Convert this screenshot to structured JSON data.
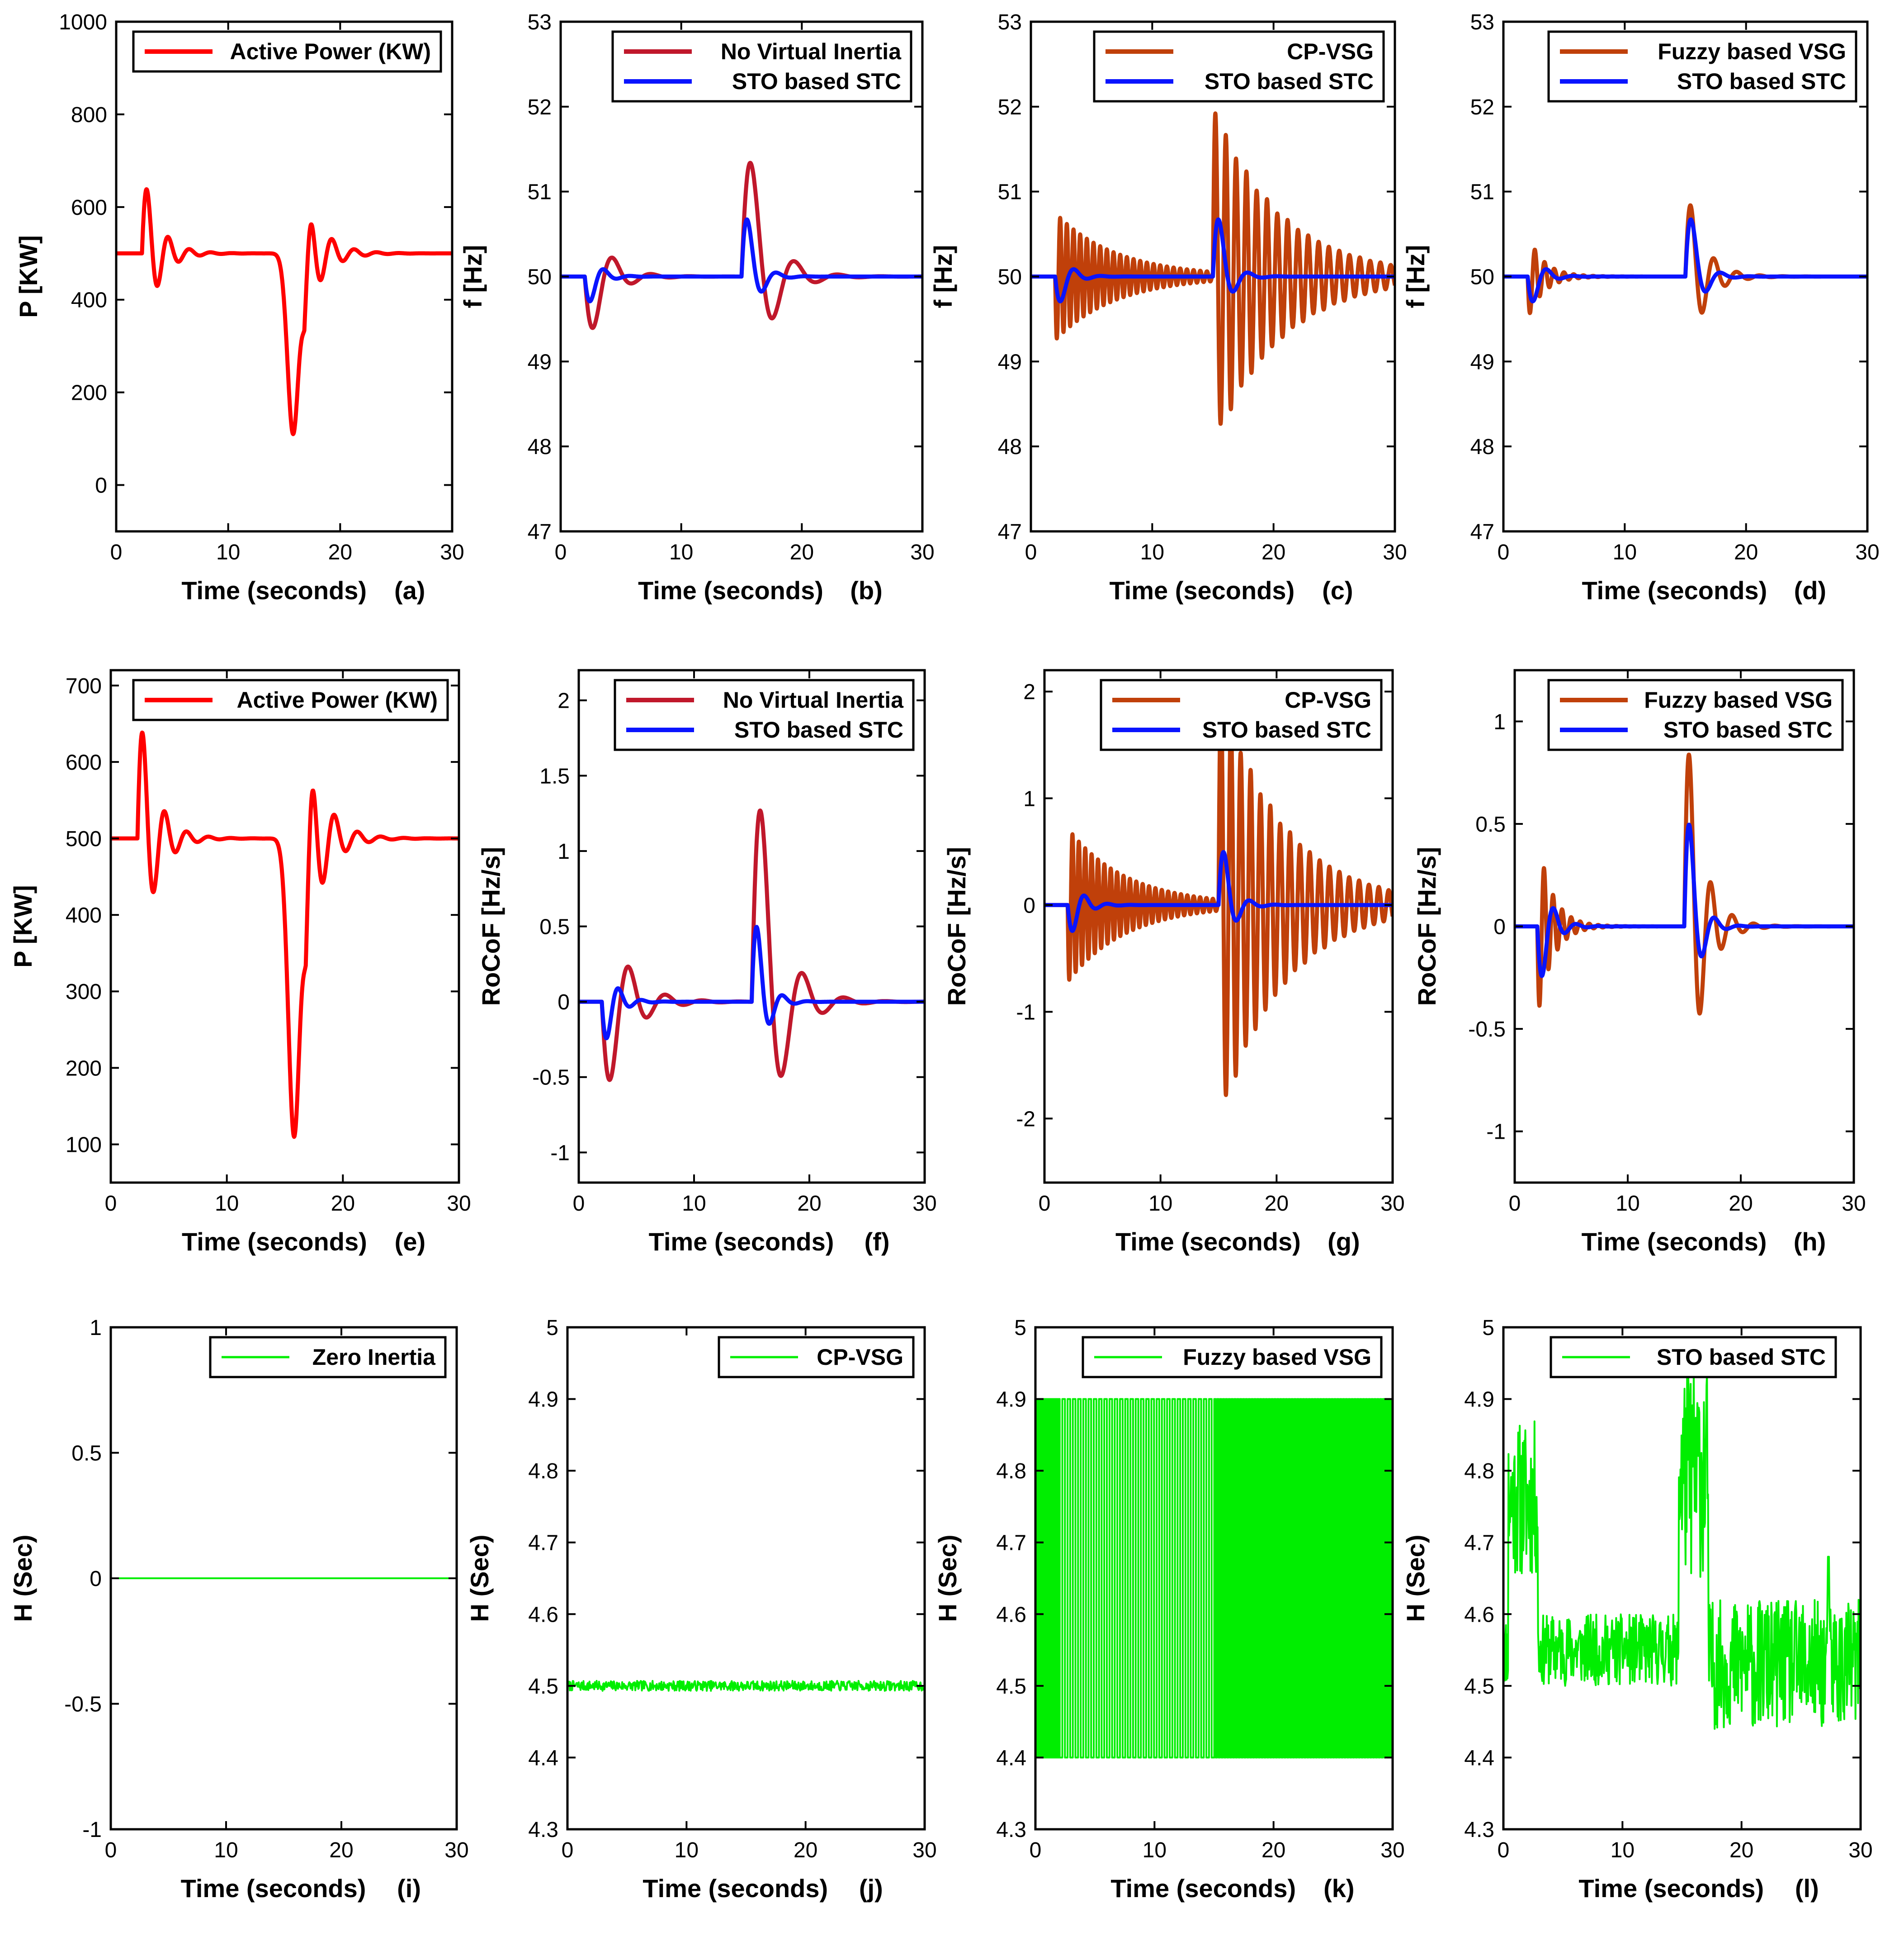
{
  "chart_data": [
    {
      "panel": "a",
      "panel_label": "(a)",
      "type": "line",
      "xlabel": "Time (seconds)",
      "ylabel": "P [KW]",
      "xlim": [
        0,
        30
      ],
      "ylim": [
        -100,
        1000
      ],
      "xticks": [
        0,
        10,
        20,
        30
      ],
      "yticks": [
        0,
        200,
        400,
        600,
        800,
        1000
      ],
      "legend_position": "top-right",
      "series": [
        {
          "name": "Active Power (KW)",
          "color": "#ff0000",
          "kind": "power"
        }
      ]
    },
    {
      "panel": "b",
      "panel_label": "(b)",
      "type": "line",
      "xlabel": "Time (seconds)",
      "ylabel": "f [Hz]",
      "xlim": [
        0,
        30
      ],
      "ylim": [
        47,
        53
      ],
      "xticks": [
        0,
        10,
        20,
        30
      ],
      "yticks": [
        47,
        48,
        49,
        50,
        51,
        52,
        53
      ],
      "legend_position": "top-right",
      "series": [
        {
          "name": "No Virtual Inertia",
          "color": "#c0182b",
          "kind": "freq_noinertia"
        },
        {
          "name": "STO based STC",
          "color": "#0a14ff",
          "kind": "freq_sto"
        }
      ]
    },
    {
      "panel": "c",
      "panel_label": "(c)",
      "type": "line",
      "xlabel": "Time (seconds)",
      "ylabel": "f [Hz]",
      "xlim": [
        0,
        30
      ],
      "ylim": [
        47,
        53
      ],
      "xticks": [
        0,
        10,
        20,
        30
      ],
      "yticks": [
        47,
        48,
        49,
        50,
        51,
        52,
        53
      ],
      "legend_position": "top-right",
      "series": [
        {
          "name": "CP-VSG",
          "color": "#c0400a",
          "kind": "freq_cpvsg"
        },
        {
          "name": "STO based STC",
          "color": "#0a14ff",
          "kind": "freq_sto"
        }
      ]
    },
    {
      "panel": "d",
      "panel_label": "(d)",
      "type": "line",
      "xlabel": "Time (seconds)",
      "ylabel": "f [Hz]",
      "xlim": [
        0,
        30
      ],
      "ylim": [
        47,
        53
      ],
      "xticks": [
        0,
        10,
        20,
        30
      ],
      "yticks": [
        47,
        48,
        49,
        50,
        51,
        52,
        53
      ],
      "legend_position": "top-right",
      "series": [
        {
          "name": "Fuzzy based VSG",
          "color": "#c0400a",
          "kind": "freq_fuzzy"
        },
        {
          "name": "STO based STC",
          "color": "#0a14ff",
          "kind": "freq_sto"
        }
      ]
    },
    {
      "panel": "e",
      "panel_label": "(e)",
      "type": "line",
      "xlabel": "Time (seconds)",
      "ylabel": "P [KW]",
      "xlim": [
        0,
        30
      ],
      "ylim": [
        50,
        720
      ],
      "xticks": [
        0,
        10,
        20,
        30
      ],
      "yticks": [
        100,
        200,
        300,
        400,
        500,
        600,
        700
      ],
      "legend_position": "top-right",
      "series": [
        {
          "name": "Active Power (KW)",
          "color": "#ff0000",
          "kind": "power"
        }
      ]
    },
    {
      "panel": "f",
      "panel_label": "(f)",
      "type": "line",
      "xlabel": "Time (seconds)",
      "ylabel": "RoCoF [Hz/s]",
      "xlim": [
        0,
        30
      ],
      "ylim": [
        -1.2,
        2.2
      ],
      "xticks": [
        0,
        10,
        20,
        30
      ],
      "yticks": [
        -1,
        -0.5,
        0,
        0.5,
        1,
        1.5,
        2
      ],
      "legend_position": "top-right",
      "series": [
        {
          "name": "No Virtual Inertia",
          "color": "#c0182b",
          "kind": "rocof_noinertia"
        },
        {
          "name": "STO based STC",
          "color": "#0a14ff",
          "kind": "rocof_sto"
        }
      ]
    },
    {
      "panel": "g",
      "panel_label": "(g)",
      "type": "line",
      "xlabel": "Time (seconds)",
      "ylabel": "RoCoF [Hz/s]",
      "xlim": [
        0,
        30
      ],
      "ylim": [
        -2.6,
        2.2
      ],
      "xticks": [
        0,
        10,
        20,
        30
      ],
      "yticks": [
        -2,
        -1,
        0,
        1,
        2
      ],
      "legend_position": "top-right",
      "series": [
        {
          "name": "CP-VSG",
          "color": "#c0400a",
          "kind": "rocof_cpvsg"
        },
        {
          "name": "STO based STC",
          "color": "#0a14ff",
          "kind": "rocof_sto"
        }
      ]
    },
    {
      "panel": "h",
      "panel_label": "(h)",
      "type": "line",
      "xlabel": "Time (seconds)",
      "ylabel": "RoCoF [Hz/s]",
      "xlim": [
        0,
        30
      ],
      "ylim": [
        -1.25,
        1.25
      ],
      "xticks": [
        0,
        10,
        20,
        30
      ],
      "yticks": [
        -1,
        -0.5,
        0,
        0.5,
        1
      ],
      "legend_position": "top-right",
      "series": [
        {
          "name": "Fuzzy based VSG",
          "color": "#c0400a",
          "kind": "rocof_fuzzy"
        },
        {
          "name": "STO based STC",
          "color": "#0a14ff",
          "kind": "rocof_sto"
        }
      ]
    },
    {
      "panel": "i",
      "panel_label": "(i)",
      "type": "line",
      "xlabel": "Time (seconds)",
      "ylabel": "H (Sec)",
      "xlim": [
        0,
        30
      ],
      "ylim": [
        -1,
        1
      ],
      "xticks": [
        0,
        10,
        20,
        30
      ],
      "yticks": [
        -1,
        -0.5,
        0,
        0.5,
        1
      ],
      "legend_position": "top-right",
      "series": [
        {
          "name": "Zero Inertia",
          "color": "#00ee00",
          "kind": "h_zero"
        }
      ]
    },
    {
      "panel": "j",
      "panel_label": "(j)",
      "type": "line",
      "xlabel": "Time (seconds)",
      "ylabel": "H (Sec)",
      "xlim": [
        0,
        30
      ],
      "ylim": [
        4.3,
        5
      ],
      "xticks": [
        0,
        10,
        20,
        30
      ],
      "yticks": [
        4.3,
        4.4,
        4.5,
        4.6,
        4.7,
        4.8,
        4.9,
        5
      ],
      "legend_position": "top-right",
      "series": [
        {
          "name": "CP-VSG",
          "color": "#00ee00",
          "kind": "h_cpvsg"
        }
      ]
    },
    {
      "panel": "k",
      "panel_label": "(k)",
      "type": "line",
      "xlabel": "Time (seconds)",
      "ylabel": "H (Sec)",
      "xlim": [
        0,
        30
      ],
      "ylim": [
        4.3,
        5
      ],
      "xticks": [
        0,
        10,
        20,
        30
      ],
      "yticks": [
        4.3,
        4.4,
        4.5,
        4.6,
        4.7,
        4.8,
        4.9,
        5
      ],
      "legend_position": "top-right",
      "series": [
        {
          "name": "Fuzzy based VSG",
          "color": "#00ee00",
          "kind": "h_fuzzy"
        }
      ]
    },
    {
      "panel": "l",
      "panel_label": "(l)",
      "type": "line",
      "xlabel": "Time (seconds)",
      "ylabel": "H (Sec)",
      "xlim": [
        0,
        30
      ],
      "ylim": [
        4.3,
        5
      ],
      "xticks": [
        0,
        10,
        20,
        30
      ],
      "yticks": [
        4.3,
        4.4,
        4.5,
        4.6,
        4.7,
        4.8,
        4.9,
        5
      ],
      "legend_position": "top-left",
      "series": [
        {
          "name": "STO based STC",
          "color": "#00ee00",
          "kind": "h_sto"
        }
      ]
    }
  ]
}
